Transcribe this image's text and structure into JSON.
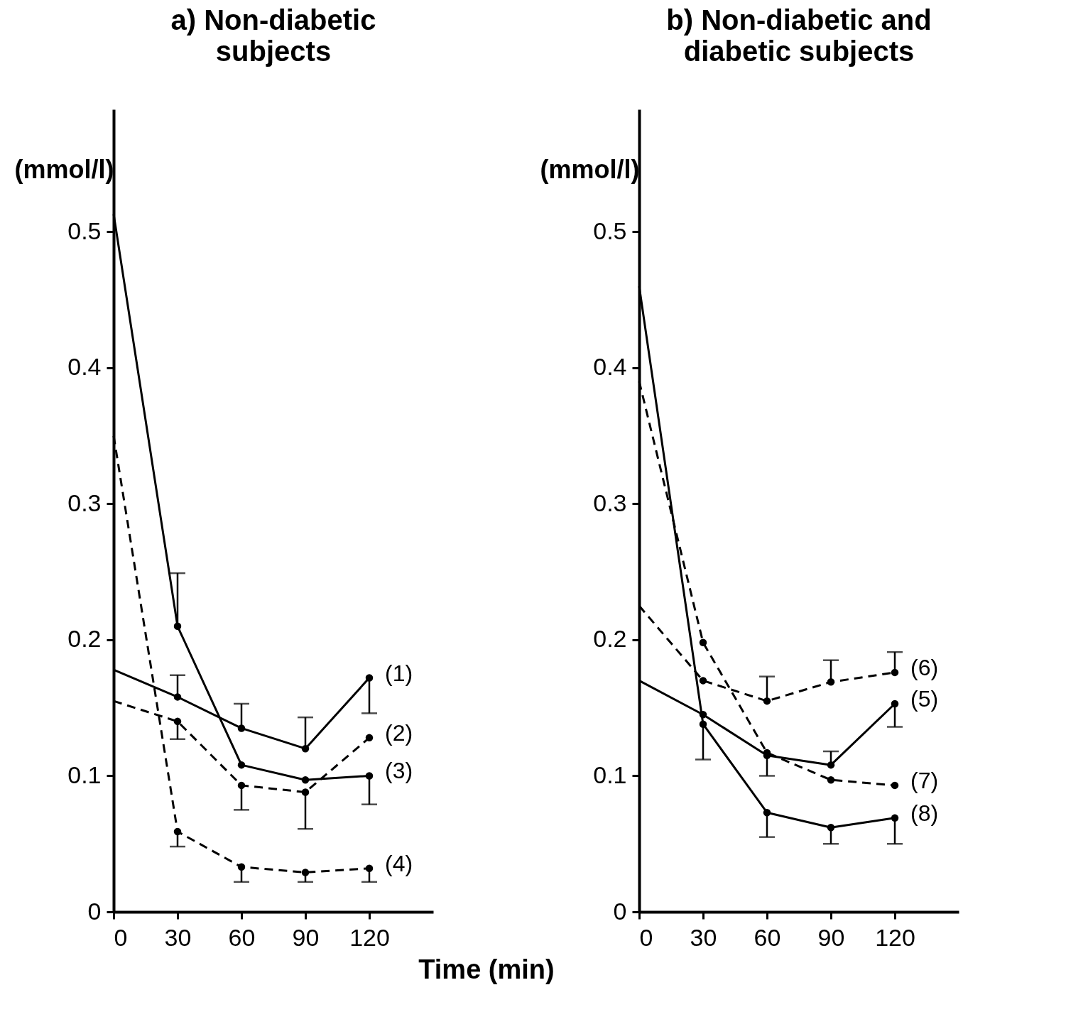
{
  "chart_data": [
    {
      "type": "line",
      "title": "a)  Non-diabetic\nsubjects",
      "ylabel": "(mmol/l)",
      "xlabel": "Time (min)",
      "x": [
        0,
        30,
        60,
        90,
        120
      ],
      "xlim": [
        0,
        150
      ],
      "xticks": [
        0,
        30,
        60,
        90,
        120
      ],
      "ylim": [
        0,
        0.59
      ],
      "yticks": [
        0,
        0.1,
        0.2,
        0.3,
        0.4,
        0.5
      ],
      "marker": "circle",
      "series": [
        {
          "name": "(1)",
          "color": "#000000",
          "line_style": "solid",
          "values": [
            0.178,
            0.158,
            0.135,
            0.12,
            0.172
          ],
          "errors": [
            null,
            [
              0.158,
              0.174
            ],
            [
              0.135,
              0.153
            ],
            [
              0.12,
              0.143
            ],
            [
              0.146,
              0.172
            ]
          ]
        },
        {
          "name": "(2)",
          "color": "#000000",
          "line_style": "dashed",
          "values": [
            0.155,
            0.14,
            0.093,
            0.088,
            0.128
          ],
          "errors": [
            null,
            [
              0.127,
              0.14
            ],
            [
              0.075,
              0.093
            ],
            [
              0.061,
              0.088
            ],
            null
          ]
        },
        {
          "name": "(3)",
          "color": "#000000",
          "line_style": "solid",
          "values": [
            0.513,
            0.21,
            0.108,
            0.097,
            0.1
          ],
          "errors": [
            null,
            [
              0.21,
              0.249
            ],
            null,
            null,
            [
              0.079,
              0.1
            ]
          ]
        },
        {
          "name": "(4)",
          "color": "#000000",
          "line_style": "dashed",
          "values": [
            0.35,
            0.059,
            0.033,
            0.029,
            0.032
          ],
          "errors": [
            null,
            [
              0.048,
              0.059
            ],
            [
              0.022,
              0.033
            ],
            [
              0.022,
              0.029
            ],
            [
              0.022,
              0.032
            ]
          ]
        }
      ]
    },
    {
      "type": "line",
      "title": "b)  Non-diabetic and\ndiabetic subjects",
      "ylabel": "(mmol/l)",
      "x": [
        0,
        30,
        60,
        90,
        120
      ],
      "xlim": [
        0,
        150
      ],
      "xticks": [
        0,
        30,
        60,
        90,
        120
      ],
      "ylim": [
        0,
        0.59
      ],
      "yticks": [
        0,
        0.1,
        0.2,
        0.3,
        0.4,
        0.5
      ],
      "marker": "circle",
      "series": [
        {
          "name": "(5)",
          "color": "#000000",
          "line_style": "solid",
          "values": [
            0.17,
            0.145,
            0.115,
            0.108,
            0.153
          ],
          "errors": [
            null,
            null,
            [
              0.1,
              0.115
            ],
            [
              0.108,
              0.118
            ],
            [
              0.136,
              0.153
            ]
          ]
        },
        {
          "name": "(6)",
          "color": "#000000",
          "line_style": "dashed",
          "values": [
            0.225,
            0.17,
            0.155,
            0.169,
            0.176
          ],
          "errors": [
            null,
            null,
            [
              0.155,
              0.173
            ],
            [
              0.169,
              0.185
            ],
            [
              0.176,
              0.191
            ]
          ]
        },
        {
          "name": "(7)",
          "color": "#000000",
          "line_style": "dashed",
          "values": [
            0.39,
            0.198,
            0.117,
            0.097,
            0.093
          ]
        },
        {
          "name": "(8)",
          "color": "#000000",
          "line_style": "solid",
          "values": [
            0.46,
            0.138,
            0.073,
            0.062,
            0.069
          ],
          "errors": [
            null,
            [
              0.112,
              0.138
            ],
            [
              0.055,
              0.073
            ],
            [
              0.05,
              0.062
            ],
            [
              0.05,
              0.069
            ]
          ]
        }
      ]
    }
  ]
}
